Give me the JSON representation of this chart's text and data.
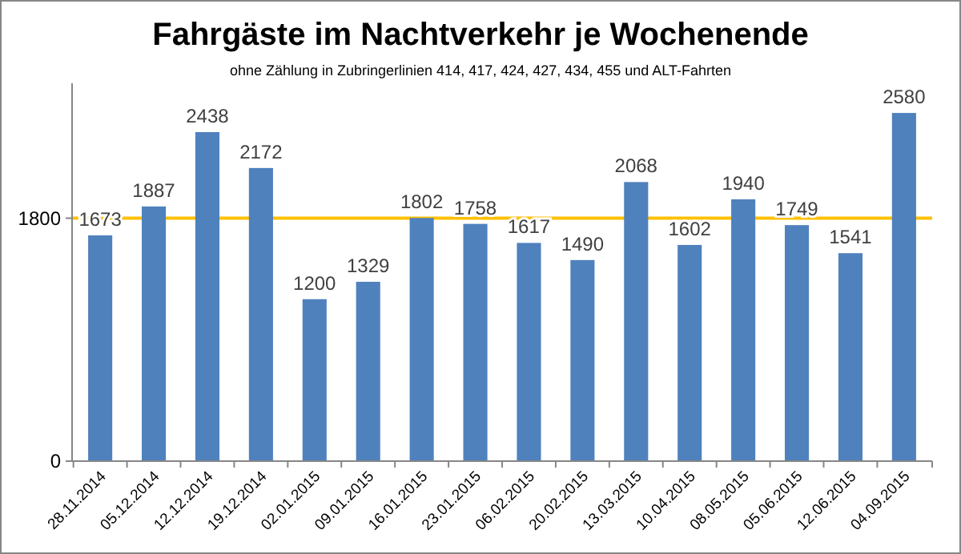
{
  "chart_data": {
    "type": "bar",
    "title": "Fahrgäste im Nachtverkehr je Wochenende",
    "subtitle": "ohne Zählung in Zubringerlinien 414, 417, 424, 427, 434, 455 und ALT-Fahrten",
    "categories": [
      "28.11.2014",
      "05.12.2014",
      "12.12.2014",
      "19.12.2014",
      "02.01.2015",
      "09.01.2015",
      "16.01.2015",
      "23.01.2015",
      "06.02.2015",
      "20.02.2015",
      "13.03.2015",
      "10.04.2015",
      "08.05.2015",
      "05.06.2015",
      "12.06.2015",
      "04.09.2015"
    ],
    "values": [
      1673,
      1887,
      2438,
      2172,
      1200,
      1329,
      1802,
      1758,
      1617,
      1490,
      2068,
      1602,
      1940,
      1749,
      1541,
      2580
    ],
    "color": "#4f81bd",
    "data_labels": true,
    "ylim": [
      0,
      2800
    ],
    "yticks": [
      0,
      1800
    ],
    "ref_lines": [
      {
        "axis": "y",
        "value": 1800,
        "label": null,
        "color": "#ffc000"
      }
    ]
  }
}
